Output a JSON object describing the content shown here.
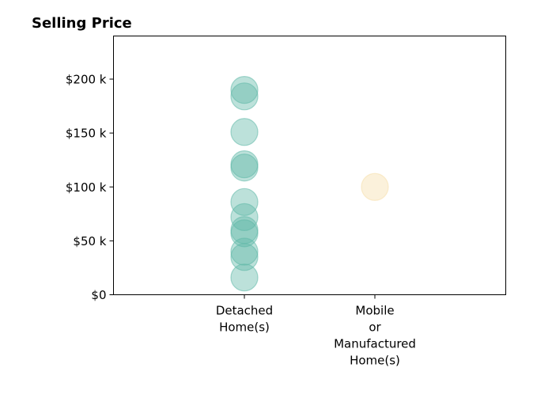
{
  "chart_data": {
    "type": "scatter",
    "title": "Selling Price",
    "xlabel": "",
    "ylabel": "",
    "categories": [
      [
        "Detached",
        "Home(s)"
      ],
      [
        "Mobile",
        "or",
        "Manufactured",
        "Home(s)"
      ]
    ],
    "ylim": [
      0,
      240000
    ],
    "yticks": [
      0,
      50000,
      100000,
      150000,
      200000
    ],
    "ytick_labels": [
      "$0",
      "$50 k",
      "$100 k",
      "$150 k",
      "$200 k"
    ],
    "series": [
      {
        "category_index": 0,
        "color": "#5fb8a8",
        "values": [
          16000,
          35000,
          40000,
          57000,
          60000,
          72000,
          86000,
          118000,
          121000,
          151000,
          184000,
          190000
        ]
      },
      {
        "category_index": 1,
        "color": "#f5deaa",
        "values": [
          100000
        ]
      }
    ],
    "grid": false,
    "legend": "none"
  }
}
